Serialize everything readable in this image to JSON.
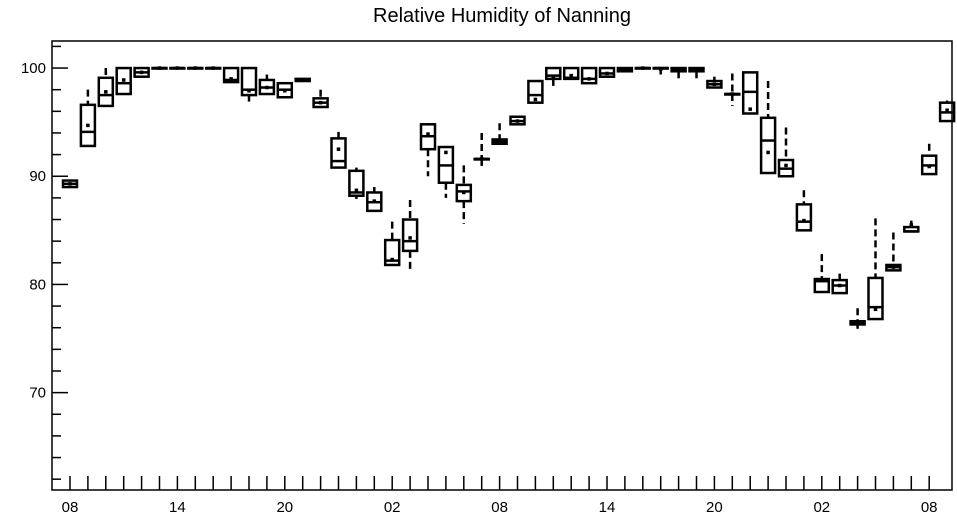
{
  "chart_data": {
    "type": "box",
    "title": "Relative Humidity of Nanning",
    "xlabel": "",
    "ylabel": "",
    "ylim": [
      61,
      102.5
    ],
    "yticks": [
      70,
      80,
      90,
      100
    ],
    "x_tick_labels": [
      "08",
      "14",
      "20",
      "02",
      "08",
      "14",
      "20",
      "02",
      "08"
    ],
    "x_tick_hours": [
      0,
      6,
      12,
      18,
      24,
      30,
      36,
      42,
      48
    ],
    "x_minor_tick_count": 49,
    "grid": false,
    "boxes": [
      {
        "h": 0,
        "low": 89.0,
        "q1": 89.0,
        "median": 89.3,
        "q3": 89.6,
        "high": 89.7,
        "mean": 89.3
      },
      {
        "h": 1,
        "low": 92.8,
        "q1": 92.8,
        "median": 94.1,
        "q3": 96.6,
        "high": 98.0,
        "mean": 94.7
      },
      {
        "h": 2,
        "low": 96.5,
        "q1": 96.5,
        "median": 97.5,
        "q3": 99.1,
        "high": 100.0,
        "mean": 97.8
      },
      {
        "h": 3,
        "low": 97.6,
        "q1": 97.6,
        "median": 98.6,
        "q3": 100.0,
        "high": 100.0,
        "mean": 98.9
      },
      {
        "h": 4,
        "low": 99.2,
        "q1": 99.2,
        "median": 99.6,
        "q3": 100.0,
        "high": 100.0,
        "mean": 99.6
      },
      {
        "h": 5,
        "low": 100.0,
        "q1": 100.0,
        "median": 100.0,
        "q3": 100.0,
        "high": 100.0,
        "mean": 100.0
      },
      {
        "h": 6,
        "low": 100.0,
        "q1": 100.0,
        "median": 100.0,
        "q3": 100.0,
        "high": 100.0,
        "mean": 100.0
      },
      {
        "h": 7,
        "low": 100.0,
        "q1": 100.0,
        "median": 100.0,
        "q3": 100.0,
        "high": 100.0,
        "mean": 100.0
      },
      {
        "h": 8,
        "low": 100.0,
        "q1": 100.0,
        "median": 100.0,
        "q3": 100.0,
        "high": 100.0,
        "mean": 100.0
      },
      {
        "h": 9,
        "low": 98.7,
        "q1": 98.7,
        "median": 98.9,
        "q3": 100.0,
        "high": 100.0,
        "mean": 99.0
      },
      {
        "h": 10,
        "low": 96.9,
        "q1": 97.5,
        "median": 98.0,
        "q3": 100.0,
        "high": 100.0,
        "mean": 97.9
      },
      {
        "h": 11,
        "low": 97.6,
        "q1": 97.6,
        "median": 98.2,
        "q3": 98.9,
        "high": 99.4,
        "mean": 98.2
      },
      {
        "h": 12,
        "low": 97.3,
        "q1": 97.3,
        "median": 98.0,
        "q3": 98.6,
        "high": 98.7,
        "mean": 97.9
      },
      {
        "h": 13,
        "low": 98.8,
        "q1": 98.8,
        "median": 98.9,
        "q3": 99.0,
        "high": 99.0,
        "mean": 98.9
      },
      {
        "h": 14,
        "low": 96.4,
        "q1": 96.4,
        "median": 96.8,
        "q3": 97.2,
        "high": 98.0,
        "mean": 96.8
      },
      {
        "h": 15,
        "low": 90.8,
        "q1": 90.8,
        "median": 91.4,
        "q3": 93.5,
        "high": 94.1,
        "mean": 92.5
      },
      {
        "h": 16,
        "low": 87.9,
        "q1": 88.2,
        "median": 88.5,
        "q3": 90.5,
        "high": 90.8,
        "mean": 88.7
      },
      {
        "h": 17,
        "low": 86.8,
        "q1": 86.8,
        "median": 87.6,
        "q3": 88.5,
        "high": 89.0,
        "mean": 87.7
      },
      {
        "h": 18,
        "low": 81.8,
        "q1": 81.8,
        "median": 82.2,
        "q3": 84.1,
        "high": 85.8,
        "mean": 82.3
      },
      {
        "h": 19,
        "low": 81.2,
        "q1": 83.1,
        "median": 84.0,
        "q3": 86.0,
        "high": 87.8,
        "mean": 84.3
      },
      {
        "h": 20,
        "low": 90.0,
        "q1": 92.5,
        "median": 93.7,
        "q3": 94.8,
        "high": 94.9,
        "mean": 93.9
      },
      {
        "h": 21,
        "low": 88.0,
        "q1": 89.4,
        "median": 91.0,
        "q3": 92.7,
        "high": 92.8,
        "mean": 92.2
      },
      {
        "h": 22,
        "low": 85.6,
        "q1": 87.7,
        "median": 88.6,
        "q3": 89.2,
        "high": 91.0,
        "mean": 88.5
      },
      {
        "h": 23,
        "low": 90.8,
        "q1": 91.6,
        "median": 91.6,
        "q3": 91.6,
        "high": 94.0,
        "mean": 91.6
      },
      {
        "h": 24,
        "low": 93.0,
        "q1": 93.0,
        "median": 93.2,
        "q3": 93.4,
        "high": 94.9,
        "mean": 93.2
      },
      {
        "h": 25,
        "low": 94.8,
        "q1": 94.8,
        "median": 95.1,
        "q3": 95.5,
        "high": 95.5,
        "mean": 95.1
      },
      {
        "h": 26,
        "low": 96.8,
        "q1": 96.8,
        "median": 97.5,
        "q3": 98.8,
        "high": 98.8,
        "mean": 97.1
      },
      {
        "h": 27,
        "low": 98.3,
        "q1": 99.0,
        "median": 99.3,
        "q3": 100.0,
        "high": 100.0,
        "mean": 99.2
      },
      {
        "h": 28,
        "low": 99.0,
        "q1": 99.0,
        "median": 99.1,
        "q3": 100.0,
        "high": 100.0,
        "mean": 99.3
      },
      {
        "h": 29,
        "low": 98.6,
        "q1": 98.6,
        "median": 99.0,
        "q3": 100.0,
        "high": 100.0,
        "mean": 99.0
      },
      {
        "h": 30,
        "low": 99.2,
        "q1": 99.2,
        "median": 99.5,
        "q3": 100.0,
        "high": 100.0,
        "mean": 99.5
      },
      {
        "h": 31,
        "low": 99.7,
        "q1": 99.7,
        "median": 99.9,
        "q3": 100.0,
        "high": 100.0,
        "mean": 99.9
      },
      {
        "h": 32,
        "low": 100.0,
        "q1": 100.0,
        "median": 100.0,
        "q3": 100.0,
        "high": 100.0,
        "mean": 100.0
      },
      {
        "h": 33,
        "low": 99.4,
        "q1": 100.0,
        "median": 100.0,
        "q3": 100.0,
        "high": 100.0,
        "mean": 99.9
      },
      {
        "h": 34,
        "low": 98.9,
        "q1": 99.7,
        "median": 99.9,
        "q3": 100.0,
        "high": 100.0,
        "mean": 99.8
      },
      {
        "h": 35,
        "low": 99.0,
        "q1": 99.7,
        "median": 99.8,
        "q3": 100.0,
        "high": 100.0,
        "mean": 99.8
      },
      {
        "h": 36,
        "low": 98.2,
        "q1": 98.2,
        "median": 98.5,
        "q3": 98.8,
        "high": 99.2,
        "mean": 98.5
      },
      {
        "h": 37,
        "low": 96.5,
        "q1": 97.6,
        "median": 97.6,
        "q3": 97.6,
        "high": 99.5,
        "mean": 97.6
      },
      {
        "h": 38,
        "low": 95.8,
        "q1": 95.8,
        "median": 97.8,
        "q3": 99.6,
        "high": 99.6,
        "mean": 96.2
      },
      {
        "h": 39,
        "low": 90.3,
        "q1": 90.3,
        "median": 93.3,
        "q3": 95.4,
        "high": 98.8,
        "mean": 92.2
      },
      {
        "h": 40,
        "low": 90.0,
        "q1": 90.0,
        "median": 90.7,
        "q3": 91.5,
        "high": 94.5,
        "mean": 91.0
      },
      {
        "h": 41,
        "low": 85.0,
        "q1": 85.0,
        "median": 85.8,
        "q3": 87.4,
        "high": 88.7,
        "mean": 85.9
      },
      {
        "h": 42,
        "low": 79.3,
        "q1": 79.3,
        "median": 80.3,
        "q3": 80.5,
        "high": 82.8,
        "mean": 80.4
      },
      {
        "h": 43,
        "low": 79.2,
        "q1": 79.2,
        "median": 79.9,
        "q3": 80.4,
        "high": 81.0,
        "mean": 79.9
      },
      {
        "h": 44,
        "low": 75.9,
        "q1": 76.3,
        "median": 76.4,
        "q3": 76.6,
        "high": 77.8,
        "mean": 76.4
      },
      {
        "h": 45,
        "low": 76.8,
        "q1": 76.8,
        "median": 77.9,
        "q3": 80.6,
        "high": 86.1,
        "mean": 77.7
      },
      {
        "h": 46,
        "low": 81.3,
        "q1": 81.3,
        "median": 81.6,
        "q3": 81.8,
        "high": 84.8,
        "mean": 81.6
      },
      {
        "h": 47,
        "low": 84.9,
        "q1": 84.9,
        "median": 84.9,
        "q3": 85.3,
        "high": 85.9,
        "mean": 85.5
      },
      {
        "h": 48,
        "low": 90.2,
        "q1": 90.2,
        "median": 91.0,
        "q3": 91.9,
        "high": 93.0,
        "mean": 90.9
      },
      {
        "h": 49,
        "low": 95.1,
        "q1": 95.1,
        "median": 95.9,
        "q3": 96.8,
        "high": 97.0,
        "mean": 96.1
      }
    ]
  }
}
